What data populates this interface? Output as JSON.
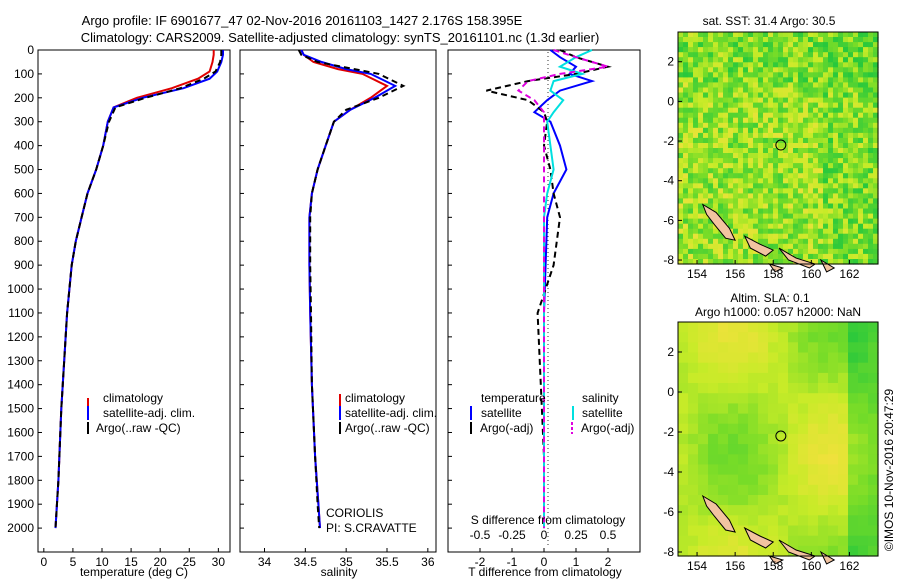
{
  "header": {
    "line1": "Argo profile: IF 6901677_47 02-Nov-2016 20161103_1427 2.176S 158.395E",
    "line2": "Climatology: CARS2009. Satellite-adjusted climatology: synTS_20161101.nc (1.3d earlier)"
  },
  "colors": {
    "climatology": "#e00000",
    "satellite": "#0000ff",
    "argo": "#000000",
    "sat_cyan": "#00e0e0",
    "argo_magenta": "#e000e0"
  },
  "chart_data": [
    {
      "type": "line",
      "id": "temperature",
      "xlabel": "temperature (deg C)",
      "ylabel": "",
      "xlim": [
        -1,
        32
      ],
      "ylim": [
        2100,
        0
      ],
      "xticks": [
        0,
        5,
        10,
        15,
        20,
        25,
        30
      ],
      "yticks": [
        0,
        100,
        200,
        300,
        400,
        500,
        600,
        700,
        800,
        900,
        1000,
        1100,
        1200,
        1300,
        1400,
        1500,
        1600,
        1700,
        1800,
        1900,
        2000
      ],
      "legend": [
        "climatology",
        "satellite-adj. clim.",
        "Argo(..raw -QC)"
      ],
      "series": [
        {
          "name": "climatology",
          "color": "#e00000",
          "dash": false,
          "x": [
            29.2,
            29.2,
            29.0,
            28.5,
            26.5,
            22.0,
            16.0,
            12.0,
            11.0,
            10.2,
            9.0,
            7.5,
            6.5,
            5.5,
            4.8,
            4.0,
            3.0,
            2.5,
            2.0
          ],
          "y": [
            0,
            20,
            50,
            90,
            120,
            160,
            200,
            240,
            300,
            400,
            500,
            600,
            700,
            800,
            900,
            1100,
            1500,
            1800,
            2000
          ]
        },
        {
          "name": "satellite-adj. clim.",
          "color": "#0000ff",
          "dash": false,
          "x": [
            30.8,
            30.8,
            30.5,
            29.8,
            28.5,
            24.0,
            17.0,
            12.0,
            11.0,
            10.2,
            9.0,
            7.5,
            6.5,
            5.5,
            4.8,
            4.0,
            3.0,
            2.5,
            2.0
          ],
          "y": [
            0,
            20,
            50,
            90,
            120,
            160,
            200,
            240,
            300,
            400,
            500,
            600,
            700,
            800,
            900,
            1100,
            1500,
            1800,
            2000
          ]
        },
        {
          "name": "Argo(..raw -QC)",
          "color": "#000000",
          "dash": true,
          "x": [
            30.5,
            30.5,
            30.3,
            29.5,
            27.5,
            23.5,
            17.5,
            12.3,
            11.2,
            10.2,
            9.0,
            7.5,
            6.5,
            5.5,
            4.8,
            4.0,
            3.0,
            2.5,
            2.0
          ],
          "y": [
            0,
            20,
            50,
            90,
            120,
            160,
            200,
            240,
            300,
            400,
            500,
            600,
            700,
            800,
            900,
            1100,
            1500,
            1800,
            2000
          ]
        }
      ],
      "annotations": []
    },
    {
      "type": "line",
      "id": "salinity",
      "xlabel": "salinity",
      "xlim": [
        33.7,
        36.1
      ],
      "ylim": [
        2100,
        0
      ],
      "xticks": [
        34,
        34.5,
        35,
        35.5,
        36
      ],
      "legend": [
        "climatology",
        "satellite-adj. clim.",
        "Argo(..raw -QC)"
      ],
      "series": [
        {
          "name": "climatology",
          "color": "#e00000",
          "dash": false,
          "x": [
            34.45,
            34.48,
            34.6,
            34.9,
            35.2,
            35.5,
            35.3,
            35.05,
            34.85,
            34.75,
            34.65,
            34.58,
            34.55,
            34.55,
            34.56,
            34.58,
            34.62,
            34.66,
            34.68
          ],
          "y": [
            0,
            20,
            50,
            80,
            100,
            150,
            200,
            250,
            300,
            400,
            500,
            600,
            700,
            900,
            1100,
            1400,
            1700,
            1900,
            2000
          ]
        },
        {
          "name": "satellite-adj. clim.",
          "color": "#0000ff",
          "dash": false,
          "x": [
            34.45,
            34.48,
            34.7,
            35.0,
            35.3,
            35.6,
            35.35,
            35.05,
            34.85,
            34.75,
            34.65,
            34.58,
            34.55,
            34.55,
            34.56,
            34.58,
            34.62,
            34.66,
            34.68
          ],
          "y": [
            0,
            20,
            50,
            80,
            100,
            150,
            200,
            250,
            300,
            400,
            500,
            600,
            700,
            900,
            1100,
            1400,
            1700,
            1900,
            2000
          ]
        },
        {
          "name": "Argo(..raw -QC)",
          "color": "#000000",
          "dash": true,
          "x": [
            34.42,
            34.45,
            34.65,
            35.1,
            35.4,
            35.7,
            35.4,
            35.0,
            34.85,
            34.75,
            34.65,
            34.58,
            34.56,
            34.56,
            34.57,
            34.58,
            34.62,
            34.65,
            34.67
          ],
          "y": [
            0,
            20,
            50,
            80,
            100,
            150,
            200,
            250,
            300,
            400,
            500,
            600,
            700,
            900,
            1100,
            1400,
            1700,
            1900,
            2000
          ]
        }
      ],
      "annotations": [
        "CORIOLIS",
        "PI: S.CRAVATTE"
      ]
    },
    {
      "type": "line",
      "id": "difference",
      "xlabel": "T difference from climatology",
      "xlabel_top": "S difference from climatology",
      "xlim": [
        -3,
        3
      ],
      "ylim": [
        2100,
        0
      ],
      "xticks": [
        -2,
        -1,
        0,
        1,
        2
      ],
      "xticks_top_labels": [
        "-0.5",
        "-0.25",
        "0",
        "0.25",
        "0.5"
      ],
      "xticks_top_values": [
        -2,
        -1,
        0,
        1,
        2
      ],
      "legend_headers": [
        "temperature",
        "salinity"
      ],
      "legend": [
        "satellite",
        "Argo(-adj)",
        "satellite",
        "Argo(-adj)"
      ],
      "series": [
        {
          "name": "T satellite",
          "color": "#0000ff",
          "dash": false,
          "x": [
            0.2,
            0.5,
            1.0,
            0.8,
            1.5,
            0.5,
            0.1,
            -0.3,
            0.2,
            0.5,
            0.7,
            0.3,
            0.1,
            0.05,
            0.0,
            0.0,
            0.0,
            0.0,
            0.0
          ],
          "y": [
            0,
            30,
            70,
            100,
            130,
            170,
            210,
            260,
            300,
            400,
            500,
            600,
            700,
            900,
            1100,
            1400,
            1700,
            1900,
            2000
          ]
        },
        {
          "name": "T Argo(-adj)",
          "color": "#000000",
          "dash": true,
          "x": [
            0.5,
            1.0,
            2.0,
            1.0,
            -0.5,
            -1.8,
            -0.5,
            0.0,
            0.1,
            0.0,
            0.2,
            0.3,
            0.5,
            0.3,
            -0.2,
            -0.1,
            0.0,
            0.0,
            0.0
          ],
          "y": [
            0,
            30,
            70,
            100,
            130,
            170,
            210,
            260,
            300,
            400,
            500,
            600,
            700,
            900,
            1100,
            1400,
            1700,
            1900,
            2000
          ]
        },
        {
          "name": "S satellite",
          "color": "#00e0e0",
          "dash": false,
          "x": [
            1.5,
            1.0,
            0.5,
            1.2,
            0.3,
            0.2,
            0.6,
            0.3,
            0.1,
            0.2,
            0.3,
            0.1,
            0.0,
            0.0,
            0.0,
            0.0,
            0.0,
            0.0,
            0.0
          ],
          "y": [
            0,
            30,
            70,
            100,
            130,
            170,
            210,
            260,
            300,
            400,
            500,
            600,
            700,
            900,
            1100,
            1400,
            1700,
            1900,
            2000
          ]
        },
        {
          "name": "S Argo(-adj)",
          "color": "#e000e0",
          "dash": true,
          "x": [
            0.3,
            1.0,
            2.0,
            0.5,
            -0.5,
            -0.8,
            -0.3,
            0.0,
            0.0,
            0.0,
            0.0,
            0.0,
            0.0,
            0.0,
            0.0,
            0.0,
            0.0,
            0.0,
            0.0
          ],
          "y": [
            0,
            30,
            70,
            100,
            130,
            170,
            210,
            260,
            300,
            400,
            500,
            600,
            700,
            900,
            1100,
            1400,
            1700,
            1900,
            2000
          ]
        }
      ],
      "annotations": []
    },
    {
      "type": "heatmap",
      "id": "sst-map",
      "title": "sat. SST: 31.4  Argo: 30.5",
      "xlim": [
        153,
        163.5
      ],
      "ylim": [
        -8.2,
        3.5
      ],
      "xticks": [
        154,
        156,
        158,
        160,
        162
      ],
      "yticks": [
        2,
        0,
        -2,
        -4,
        -6,
        -8
      ],
      "marker": {
        "lon": 158.4,
        "lat": -2.2
      }
    },
    {
      "type": "heatmap",
      "id": "sla-map",
      "title": "Altim. SLA: 0.1",
      "subtitle": "Argo h1000: 0.057 h2000: NaN",
      "xlim": [
        153,
        163.5
      ],
      "ylim": [
        -8.2,
        3.5
      ],
      "xticks": [
        154,
        156,
        158,
        160,
        162
      ],
      "yticks": [
        2,
        0,
        -2,
        -4,
        -6,
        -8
      ],
      "marker": {
        "lon": 158.4,
        "lat": -2.2
      }
    }
  ],
  "footer": {
    "credit": "©IMOS 10-Nov-2016 20:47:29"
  }
}
